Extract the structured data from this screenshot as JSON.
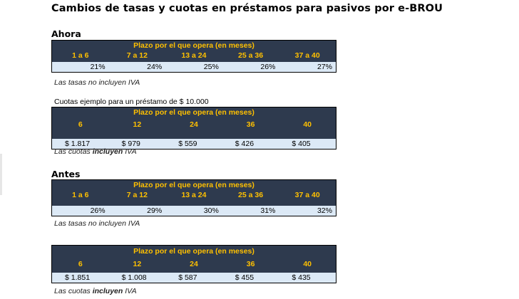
{
  "title": "Cambios de tasas y cuotas en préstamos para pasivos por e-BROU",
  "sections": {
    "ahora": {
      "heading": "Ahora",
      "rates": {
        "super_header": "Plazo por el que opera (en meses)",
        "columns": [
          "1 a 6",
          "7 a 12",
          "13 a 24",
          "25 a 36",
          "37 a 40"
        ],
        "values": [
          "21%",
          "24%",
          "25%",
          "26%",
          "27%"
        ],
        "note": "Las tasas no incluyen IVA"
      },
      "example_caption": "Cuotas ejemplo para un préstamo de $ 10.000",
      "quotas": {
        "super_header": "Plazo por el que opera (en meses)",
        "columns": [
          "6",
          "12",
          "24",
          "36",
          "40"
        ],
        "values": [
          "$ 1.817",
          "$ 979",
          "$ 559",
          "$ 426",
          "$ 405"
        ],
        "note_before": "Las cuotas ",
        "note_bold": "incluyen",
        "note_after": " IVA"
      }
    },
    "antes": {
      "heading": "Antes",
      "rates": {
        "super_header": "Plazo por el que opera (en meses)",
        "columns": [
          "1 a 6",
          "7 a 12",
          "13 a 24",
          "25 a 36",
          "37 a 40"
        ],
        "values": [
          "26%",
          "29%",
          "30%",
          "31%",
          "32%"
        ],
        "note": "Las tasas no incluyen IVA"
      },
      "quotas": {
        "super_header": "Plazo por el que opera (en meses)",
        "columns": [
          "6",
          "12",
          "24",
          "36",
          "40"
        ],
        "values": [
          "$ 1.851",
          "$ 1.008",
          "$ 587",
          "$ 455",
          "$ 435"
        ],
        "note_before": "Las cuotas ",
        "note_bold": "incluyen",
        "note_after": " IVA"
      }
    }
  },
  "colors": {
    "header_bg": "#2e3a4e",
    "header_text": "#ffc000",
    "value_bg": "#dce9f6"
  }
}
